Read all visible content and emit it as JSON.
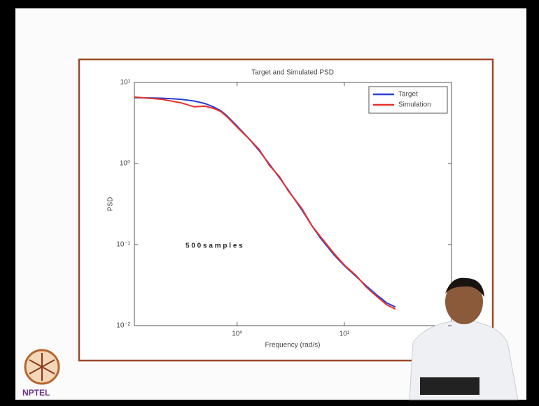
{
  "chart_data": {
    "type": "line",
    "title": "Target and Simulated PSD",
    "xlabel": "Frequency (rad/s)",
    "ylabel": "PSD",
    "annotation": "5 0 0   s a m p l e s",
    "x": [
      0.11,
      0.2,
      0.3,
      0.4,
      0.5,
      0.6,
      0.7,
      0.8,
      1,
      1.3,
      1.6,
      2,
      2.5,
      3,
      4,
      5,
      6,
      8,
      10,
      13,
      16,
      20,
      25,
      30
    ],
    "series": [
      {
        "name": "Target",
        "color": "#2a3fd6",
        "values": [
          6.5,
          6.4,
          6.2,
          5.9,
          5.5,
          5.0,
          4.5,
          3.9,
          2.9,
          2.0,
          1.45,
          0.98,
          0.66,
          0.47,
          0.27,
          0.17,
          0.12,
          0.075,
          0.055,
          0.04,
          0.031,
          0.024,
          0.019,
          0.017
        ]
      },
      {
        "name": "Simulation",
        "color": "#e8302a",
        "values": [
          6.6,
          6.2,
          5.6,
          5.0,
          5.1,
          4.8,
          4.4,
          3.8,
          2.8,
          2.0,
          1.5,
          0.95,
          0.68,
          0.46,
          0.28,
          0.17,
          0.125,
          0.078,
          0.056,
          0.041,
          0.03,
          0.023,
          0.018,
          0.016
        ]
      }
    ],
    "xscale": "log",
    "yscale": "log",
    "xlim": [
      0.11,
      100
    ],
    "ylim": [
      0.01,
      10
    ],
    "xticks": [
      {
        "value": 1,
        "label": "10⁰"
      },
      {
        "value": 10,
        "label": "10¹"
      }
    ],
    "yticks": [
      {
        "value": 0.01,
        "label": "10⁻²"
      },
      {
        "value": 0.1,
        "label": "10⁻¹"
      },
      {
        "value": 1,
        "label": "10⁰"
      },
      {
        "value": 10,
        "label": "10¹"
      }
    ],
    "grid": false,
    "legend": "upper right"
  },
  "logo": "NPTEL"
}
